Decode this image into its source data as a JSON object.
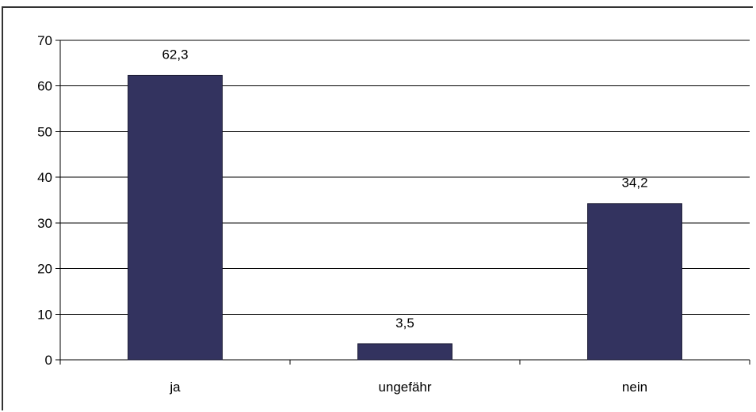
{
  "chart_data": {
    "type": "bar",
    "categories": [
      "ja",
      "ungefähr",
      "nein"
    ],
    "values": [
      62.3,
      3.5,
      34.2
    ],
    "data_labels": [
      "62,3",
      "3,5",
      "34,2"
    ],
    "title": "",
    "xlabel": "",
    "ylabel": "",
    "ylim": [
      0,
      70
    ],
    "yticks": [
      0,
      10,
      20,
      30,
      40,
      50,
      60,
      70
    ],
    "grid": true,
    "legend": "none",
    "bar_color": "#33335f",
    "bar_edge_color": "#1a1a33"
  }
}
